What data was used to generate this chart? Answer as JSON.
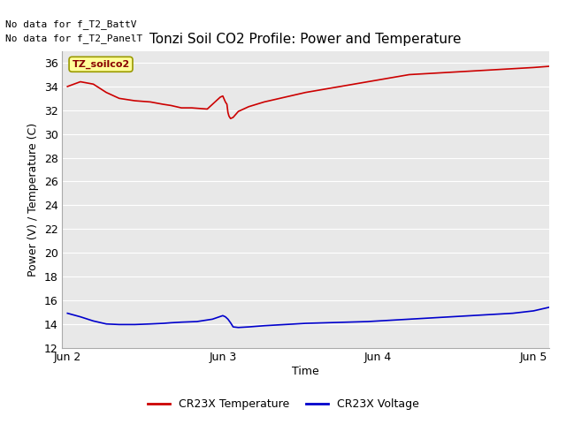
{
  "title": "Tonzi Soil CO2 Profile: Power and Temperature",
  "ylabel": "Power (V) / Temperature (C)",
  "xlabel": "Time",
  "no_data_text": [
    "No data for f_T2_BattV",
    "No data for f_T2_PanelT"
  ],
  "legend_label_red": "CR23X Temperature",
  "legend_label_blue": "CR23X Voltage",
  "annotation_text": "TZ_soilco2",
  "annotation_bbox_color": "#ffff99",
  "annotation_bbox_edge": "#999900",
  "ylim": [
    12,
    37
  ],
  "yticks": [
    12,
    14,
    16,
    18,
    20,
    22,
    24,
    26,
    28,
    30,
    32,
    34,
    36
  ],
  "background_color": "#e8e8e8",
  "grid_color": "#ffffff",
  "line_color_red": "#cc0000",
  "line_color_blue": "#0000cc",
  "temp_x": [
    0.0,
    0.25,
    0.5,
    0.75,
    1.0,
    1.3,
    1.6,
    1.85,
    2.0,
    2.1,
    2.2,
    2.4,
    2.7,
    2.85,
    2.95,
    3.0,
    3.05,
    3.08,
    3.1,
    3.12,
    3.15,
    3.2,
    3.3,
    3.5,
    3.8,
    4.2,
    4.6,
    5.0,
    5.4,
    5.8,
    6.2,
    6.6,
    7.0,
    7.4,
    7.8,
    8.2,
    8.6,
    9.0,
    9.3
  ],
  "temp_y": [
    34.0,
    34.4,
    34.2,
    33.5,
    33.0,
    32.8,
    32.7,
    32.5,
    32.4,
    32.3,
    32.2,
    32.2,
    32.1,
    32.7,
    33.1,
    33.2,
    32.7,
    32.5,
    31.8,
    31.5,
    31.3,
    31.4,
    31.9,
    32.3,
    32.7,
    33.1,
    33.5,
    33.8,
    34.1,
    34.4,
    34.7,
    35.0,
    35.1,
    35.2,
    35.3,
    35.4,
    35.5,
    35.6,
    35.7
  ],
  "volt_x": [
    0.0,
    0.25,
    0.5,
    0.75,
    1.0,
    1.3,
    1.6,
    1.85,
    2.0,
    2.2,
    2.5,
    2.8,
    3.0,
    3.05,
    3.1,
    3.15,
    3.2,
    3.3,
    3.5,
    3.8,
    4.2,
    4.6,
    5.0,
    5.4,
    5.8,
    6.2,
    6.6,
    7.0,
    7.4,
    7.8,
    8.2,
    8.6,
    9.0,
    9.3
  ],
  "volt_y": [
    14.9,
    14.6,
    14.25,
    14.0,
    13.95,
    13.95,
    14.0,
    14.05,
    14.1,
    14.15,
    14.2,
    14.4,
    14.7,
    14.6,
    14.4,
    14.1,
    13.75,
    13.7,
    13.75,
    13.85,
    13.95,
    14.05,
    14.1,
    14.15,
    14.2,
    14.3,
    14.4,
    14.5,
    14.6,
    14.7,
    14.8,
    14.9,
    15.1,
    15.4
  ],
  "xtick_positions": [
    0.0,
    3.0,
    6.0,
    9.0
  ],
  "xtick_labels": [
    "Jun 2",
    "Jun 3",
    "Jun 4",
    "Jun 5"
  ],
  "title_fontsize": 11,
  "axis_fontsize": 9,
  "tick_fontsize": 9,
  "legend_fontsize": 9,
  "nodata_fontsize": 8
}
